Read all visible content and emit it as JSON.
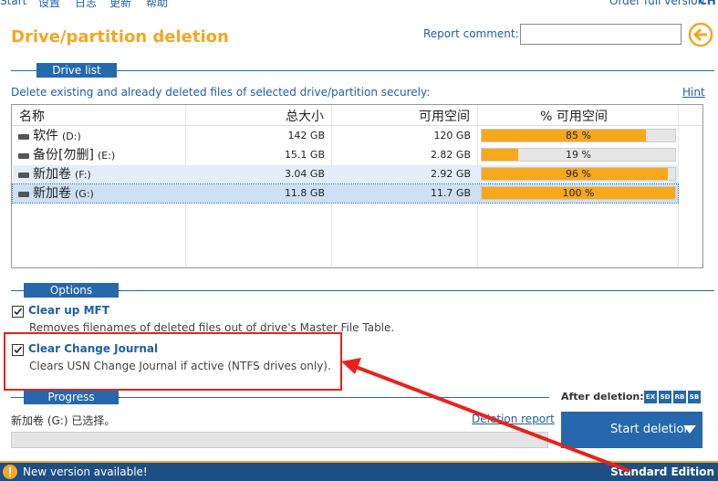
{
  "menu": [
    "Start",
    "设置",
    "日志",
    "更新",
    "帮助"
  ],
  "order_link": "Order full version",
  "language": "CH",
  "title": "Drive/partition deletion",
  "report_comment_label": "Report comment:",
  "drive_list": {
    "header": "Drive list",
    "description": "Delete existing and already deleted files of selected drive/partition securely:",
    "hint": "Hint",
    "columns": [
      "名称",
      "总大小",
      "可用空间",
      "% 可用空间"
    ],
    "rows": [
      {
        "name": "软件",
        "letter": "(D:)",
        "total": "142 GB",
        "free": "120 GB",
        "free_percent": {
          "value": 85,
          "label": "85 %"
        }
      },
      {
        "name": "备份[勿删]",
        "letter": "(E:)",
        "total": "15.1 GB",
        "free": "2.82 GB",
        "free_percent": {
          "value": 19,
          "label": "19 %"
        }
      },
      {
        "name": "新加卷",
        "letter": "(F:)",
        "total": "3.04 GB",
        "free": "2.92 GB",
        "free_percent": {
          "value": 96,
          "label": "96 %"
        }
      },
      {
        "name": "新加卷",
        "letter": "(G:)",
        "total": "11.8 GB",
        "free": "11.7 GB",
        "free_percent": {
          "value": 100,
          "label": "100 %"
        }
      }
    ]
  },
  "options": {
    "header": "Options",
    "items": [
      {
        "label": "Clear up MFT",
        "description": "Removes filenames of deleted files out of drive's Master File Table.",
        "checked": true
      },
      {
        "label": "Clear Change Journal",
        "description": "Clears USN Change Journal if active (NTFS drives only).",
        "checked": true
      }
    ]
  },
  "progress": {
    "header": "Progress",
    "status": "新加卷 (G:) 已选择。",
    "report_link": "Deletion report"
  },
  "after_deletion": {
    "label": "After deletion:",
    "icons": [
      "EX",
      "SD",
      "RB",
      "SB"
    ]
  },
  "start_button": "Start deletion",
  "status_bar": {
    "message": "New version available!",
    "edition": "Standard Edition"
  }
}
